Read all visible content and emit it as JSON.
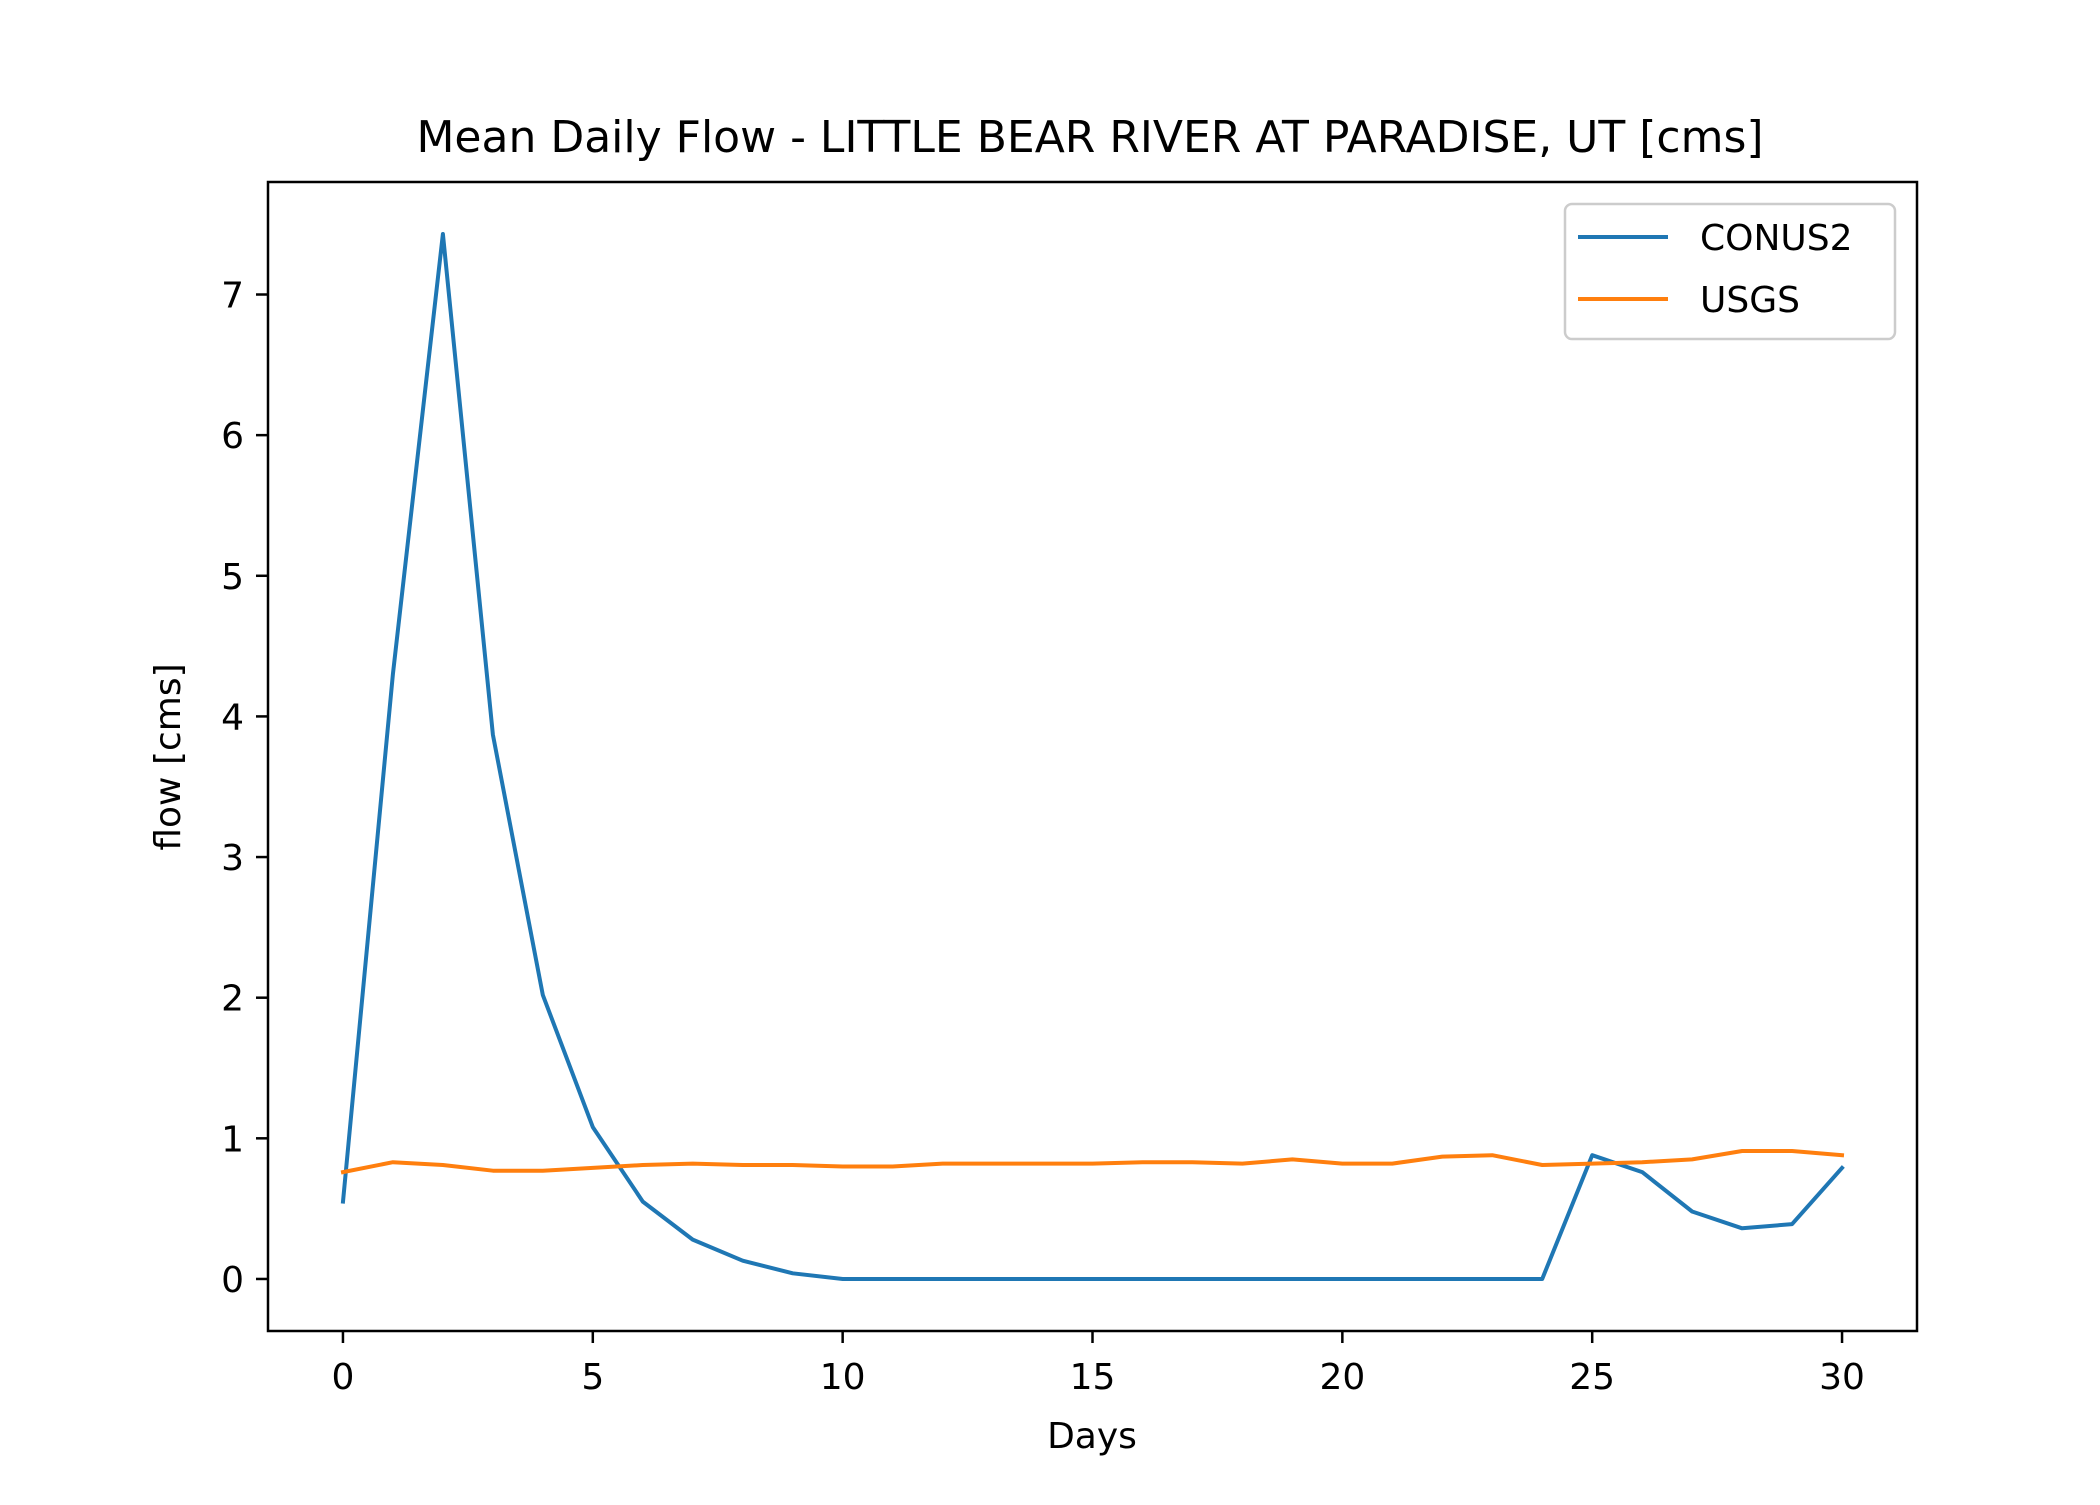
{
  "chart_data": {
    "type": "line",
    "title": "Mean Daily Flow - LITTLE BEAR RIVER AT PARADISE, UT [cms]",
    "xlabel": "Days",
    "ylabel": "flow [cms]",
    "xlim": [
      -1.5,
      31.5
    ],
    "ylim": [
      -0.37,
      7.8
    ],
    "xticks": [
      0,
      5,
      10,
      15,
      20,
      25,
      30
    ],
    "yticks": [
      0,
      1,
      2,
      3,
      4,
      5,
      6,
      7
    ],
    "grid": false,
    "legend_position": "upper right",
    "x": [
      0,
      1,
      2,
      3,
      4,
      5,
      6,
      7,
      8,
      9,
      10,
      11,
      12,
      13,
      14,
      15,
      16,
      17,
      18,
      19,
      20,
      21,
      22,
      23,
      24,
      25,
      26,
      27,
      28,
      29,
      30
    ],
    "series": [
      {
        "name": "CONUS2",
        "color": "#1f77b4",
        "values": [
          0.55,
          4.3,
          7.43,
          3.87,
          2.02,
          1.08,
          0.55,
          0.28,
          0.13,
          0.04,
          0.0,
          0.0,
          0.0,
          0.0,
          0.0,
          0.0,
          0.0,
          0.0,
          0.0,
          0.0,
          0.0,
          0.0,
          0.0,
          0.0,
          0.0,
          0.88,
          0.76,
          0.48,
          0.36,
          0.39,
          0.79
        ]
      },
      {
        "name": "USGS",
        "color": "#ff7f0e",
        "values": [
          0.76,
          0.83,
          0.81,
          0.77,
          0.77,
          0.79,
          0.81,
          0.82,
          0.81,
          0.81,
          0.8,
          0.8,
          0.82,
          0.82,
          0.82,
          0.82,
          0.83,
          0.83,
          0.82,
          0.85,
          0.82,
          0.82,
          0.87,
          0.88,
          0.81,
          0.82,
          0.83,
          0.85,
          0.91,
          0.91,
          0.88
        ]
      }
    ]
  }
}
